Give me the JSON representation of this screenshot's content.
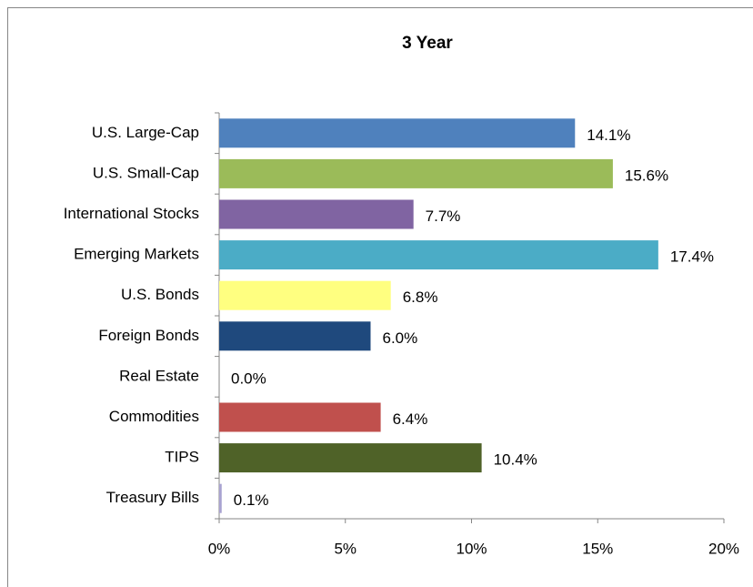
{
  "chart_data": {
    "type": "bar",
    "orientation": "horizontal",
    "title": "3 Year",
    "categories": [
      "U.S. Large-Cap",
      "U.S. Small-Cap",
      "International Stocks",
      "Emerging Markets",
      "U.S. Bonds",
      "Foreign Bonds",
      "Real Estate",
      "Commodities",
      "TIPS",
      "Treasury Bills"
    ],
    "values": [
      14.1,
      15.6,
      7.7,
      17.4,
      6.8,
      6.0,
      0.0,
      6.4,
      10.4,
      0.1
    ],
    "value_labels": [
      "14.1%",
      "15.6%",
      "7.7%",
      "17.4%",
      "6.8%",
      "6.0%",
      "0.0%",
      "6.4%",
      "10.4%",
      "0.1%"
    ],
    "colors": [
      "#4f81bd",
      "#9bbb59",
      "#8064a2",
      "#4bacc6",
      "#ffff80",
      "#1f497d",
      "#f79646",
      "#c0504d",
      "#4f6228",
      "#a9a3d1"
    ],
    "xlim": [
      0,
      20
    ],
    "xticks": [
      {
        "value": 0,
        "label": "0%"
      },
      {
        "value": 5,
        "label": "5%"
      },
      {
        "value": 10,
        "label": "10%"
      },
      {
        "value": 15,
        "label": "15%"
      },
      {
        "value": 20,
        "label": "20%"
      }
    ],
    "grid": false
  }
}
